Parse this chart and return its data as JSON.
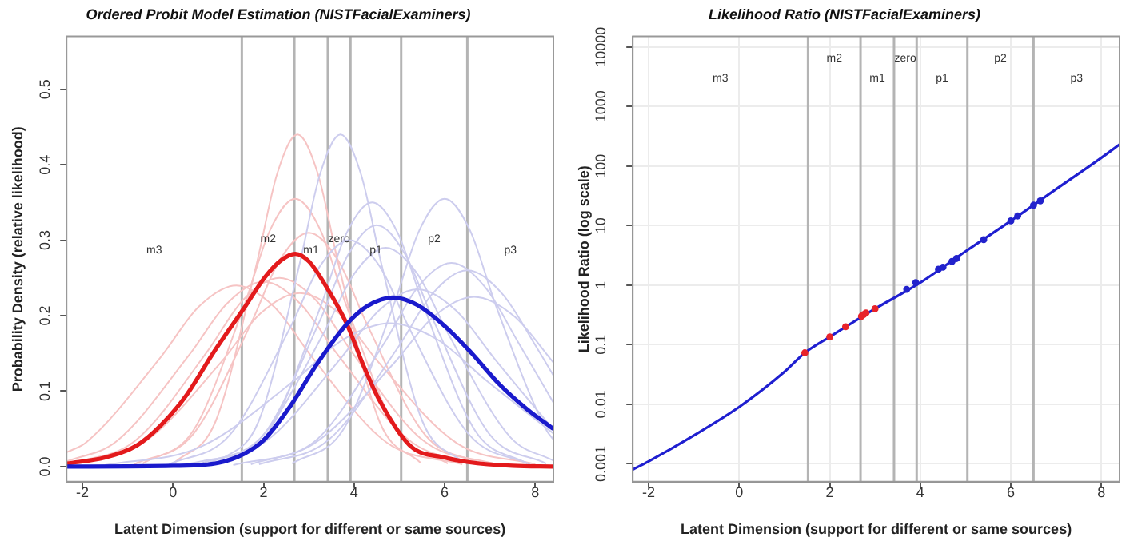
{
  "chart_data": [
    {
      "type": "line",
      "title": "Ordered Probit Model Estimation (NISTFacialExaminers)",
      "xlabel": "Latent Dimension (support for different or same sources)",
      "ylabel": "Probability Density (relative likelihood)",
      "xlim": [
        -2.35,
        8.4
      ],
      "ylim": [
        -0.02,
        0.57
      ],
      "xticks": [
        -2,
        0,
        2,
        4,
        6,
        8
      ],
      "yticks": [
        {
          "value": 0,
          "label": "0.0"
        },
        0.1,
        0.2,
        0.3,
        0.4,
        0.5
      ],
      "legend": false,
      "grid": false,
      "series": [
        {
          "color": "#f6c4c4",
          "x": [
            -2.35,
            -1.92,
            -0.26,
            0.57,
            1.4,
            2.23,
            3.06,
            4.72,
            6.39
          ],
          "values": [
            0.019,
            0.032,
            0.146,
            0.212,
            0.24,
            0.212,
            0.146,
            0.032,
            0.003
          ]
        },
        {
          "color": "#f6c4c4",
          "x": [
            -2.35,
            -1.26,
            0.37,
            1.19,
            2,
            2.81,
            3.63,
            5.26,
            6.88
          ],
          "values": [
            0.007,
            0.033,
            0.149,
            0.216,
            0.245,
            0.216,
            0.149,
            0.033,
            0.003
          ]
        },
        {
          "color": "#f6c4c4",
          "x": [
            -2.35,
            -0.84,
            0.75,
            1.55,
            2.35,
            3.15,
            3.95,
            5.54,
            7.14
          ],
          "values": [
            0.003,
            0.034,
            0.152,
            0.221,
            0.25,
            0.221,
            0.152,
            0.034,
            0.003
          ]
        },
        {
          "color": "#f6c4c4",
          "x": [
            -0.67,
            0.45,
            1.58,
            2.14,
            2.7,
            3.26,
            3.82,
            4.95,
            6.07
          ],
          "values": [
            0.004,
            0.048,
            0.215,
            0.313,
            0.355,
            0.313,
            0.215,
            0.048,
            0.004
          ]
        },
        {
          "color": "#f6c4c4",
          "x": [
            0.03,
            0.94,
            1.84,
            2.3,
            2.75,
            3.2,
            3.66,
            4.56,
            5.47
          ],
          "values": [
            0.005,
            0.06,
            0.267,
            0.388,
            0.44,
            0.388,
            0.267,
            0.06,
            0.005
          ]
        },
        {
          "color": "#f6c4c4",
          "x": [
            -2.35,
            -0.67,
            1.07,
            1.93,
            2.8,
            3.67,
            4.53,
            6.27,
            8
          ],
          "values": [
            0.003,
            0.031,
            0.139,
            0.203,
            0.23,
            0.203,
            0.139,
            0.031,
            0.003
          ]
        },
        {
          "color": "#f6c4c4",
          "x": [
            -0.86,
            0.43,
            1.71,
            2.36,
            3,
            3.64,
            4.29,
            5.57,
            6.86
          ],
          "values": [
            0.003,
            0.042,
            0.188,
            0.274,
            0.31,
            0.274,
            0.188,
            0.042,
            0.003
          ]
        },
        {
          "color": "#cdcdee",
          "x": [
            0.98,
            1.89,
            2.79,
            3.25,
            3.7,
            4.15,
            4.61,
            5.51,
            6.42
          ],
          "values": [
            0.005,
            0.06,
            0.267,
            0.388,
            0.44,
            0.388,
            0.267,
            0.06,
            0.005
          ]
        },
        {
          "color": "#cdcdee",
          "x": [
            -0.09,
            1.24,
            2.57,
            3.24,
            3.9,
            4.57,
            5.23,
            6.56,
            7.89
          ],
          "values": [
            0.003,
            0.041,
            0.182,
            0.265,
            0.3,
            0.265,
            0.182,
            0.041,
            0.003
          ]
        },
        {
          "color": "#cdcdee",
          "x": [
            0.98,
            2.12,
            3.26,
            3.83,
            4.4,
            4.97,
            5.54,
            6.68,
            7.82
          ],
          "values": [
            0.004,
            0.047,
            0.212,
            0.309,
            0.35,
            0.309,
            0.212,
            0.047,
            0.004
          ]
        },
        {
          "color": "#cdcdee",
          "x": [
            0.76,
            2.01,
            3.25,
            3.88,
            4.5,
            5.12,
            5.75,
            6.99,
            8.24
          ],
          "values": [
            0.004,
            0.043,
            0.194,
            0.282,
            0.32,
            0.282,
            0.194,
            0.043,
            0.004
          ]
        },
        {
          "color": "#cdcdee",
          "x": [
            0.57,
            1.95,
            3.32,
            4.01,
            4.7,
            5.39,
            6.08,
            7.45,
            8.4
          ],
          "values": [
            0.003,
            0.039,
            0.176,
            0.256,
            0.29,
            0.256,
            0.176,
            0.039,
            0.008
          ]
        },
        {
          "color": "#cdcdee",
          "x": [
            -1.5,
            0.6,
            2.7,
            3.75,
            4.8,
            5.85,
            6.9,
            8.4
          ],
          "values": [
            0.002,
            0.026,
            0.115,
            0.168,
            0.19,
            0.168,
            0.115,
            0.044
          ]
        },
        {
          "color": "#cdcdee",
          "x": [
            0.31,
            2.01,
            3.7,
            4.55,
            5.4,
            6.25,
            7.1,
            8.4
          ],
          "values": [
            0.003,
            0.032,
            0.143,
            0.207,
            0.235,
            0.207,
            0.143,
            0.049
          ]
        },
        {
          "color": "#cdcdee",
          "x": [
            2.63,
            3.75,
            4.88,
            5.44,
            6,
            6.56,
            7.12,
            8.25,
            8.4
          ],
          "values": [
            0.004,
            0.048,
            0.215,
            0.313,
            0.355,
            0.313,
            0.215,
            0.048,
            0.036
          ]
        },
        {
          "color": "#cdcdee",
          "x": [
            1.72,
            3.2,
            4.67,
            5.41,
            6.15,
            6.89,
            7.63,
            8.4
          ],
          "values": [
            0.003,
            0.037,
            0.164,
            0.238,
            0.27,
            0.238,
            0.164,
            0.085
          ]
        },
        {
          "color": "#cdcdee",
          "x": [
            1.9,
            3.43,
            4.97,
            5.73,
            6.5,
            7.27,
            8.03,
            8.4
          ],
          "values": [
            0.003,
            0.035,
            0.158,
            0.229,
            0.26,
            0.229,
            0.158,
            0.121
          ]
        },
        {
          "color": "#cdcdee",
          "x": [
            1.33,
            3.1,
            4.88,
            5.76,
            6.65,
            7.54,
            8.4
          ],
          "values": [
            0.002,
            0.03,
            0.137,
            0.199,
            0.225,
            0.199,
            0.138
          ]
        },
        {
          "color": "#e31a1c",
          "x": [
            -2.35,
            -1.5,
            -0.8,
            -0.28,
            0.3,
            0.87,
            1.57,
            2.03,
            2.4,
            2.7,
            3,
            3.4,
            3.84,
            4.2,
            4.56,
            5.25,
            6,
            6.52,
            7.5,
            8.4
          ],
          "values": [
            0.004,
            0.012,
            0.028,
            0.054,
            0.095,
            0.149,
            0.21,
            0.251,
            0.274,
            0.282,
            0.272,
            0.237,
            0.189,
            0.135,
            0.088,
            0.027,
            0.012,
            0.006,
            0.001,
            0
          ]
        },
        {
          "color": "#1a1acc",
          "x": [
            -2.35,
            0,
            1,
            1.57,
            2,
            2.6,
            3.18,
            3.84,
            4.3,
            4.85,
            5.4,
            6.06,
            6.6,
            7.21,
            7.8,
            8.4
          ],
          "values": [
            0,
            0.001,
            0.005,
            0.017,
            0.035,
            0.081,
            0.136,
            0.189,
            0.213,
            0.224,
            0.214,
            0.183,
            0.15,
            0.109,
            0.077,
            0.05
          ]
        }
      ],
      "ref_lines": [
        {
          "axis": "x",
          "value": 1.52,
          "color": "#b4b4b4"
        },
        {
          "axis": "x",
          "value": 2.68,
          "color": "#b4b4b4"
        },
        {
          "axis": "x",
          "value": 3.42,
          "color": "#b4b4b4"
        },
        {
          "axis": "x",
          "value": 3.92,
          "color": "#b4b4b4"
        },
        {
          "axis": "x",
          "value": 5.04,
          "color": "#b4b4b4"
        },
        {
          "axis": "x",
          "value": 6.5,
          "color": "#b4b4b4"
        }
      ],
      "annotations": [
        "m3",
        "m2",
        "m1",
        "zero",
        "p1",
        "p2",
        "p3"
      ]
    },
    {
      "type": "line",
      "title": "Likelihood Ratio (NISTFacialExaminers)",
      "xlabel": "Latent Dimension (support for different or same sources)",
      "ylabel": "Likelihood Ratio (log scale)",
      "log": "y",
      "xlim": [
        -2.35,
        8.4
      ],
      "ylim": [
        0.0005,
        15000
      ],
      "xticks": [
        -2,
        0,
        2,
        4,
        6,
        8
      ],
      "yticks": [
        0.001,
        0.01,
        0.1,
        1,
        10,
        100,
        1000,
        10000
      ],
      "legend": false,
      "grid": true,
      "series": [
        {
          "type": "line",
          "color": "#1f1fd0",
          "x": [
            -2.35,
            -2,
            -1,
            0,
            1,
            1.45,
            2,
            3,
            4,
            5,
            6,
            7,
            8,
            8.4
          ],
          "values": [
            0.0008,
            0.0011,
            0.003,
            0.009,
            0.035,
            0.073,
            0.135,
            0.4,
            1.1,
            3.7,
            12,
            41,
            138,
            230
          ]
        },
        {
          "type": "scatter",
          "marker": "circle",
          "color": "#e8232a",
          "x": [
            1.45,
            2,
            2.35,
            2.7,
            2.75,
            2.8,
            3
          ],
          "values": [
            0.073,
            0.135,
            0.2,
            0.3,
            0.32,
            0.34,
            0.4
          ]
        },
        {
          "type": "scatter",
          "marker": "circle",
          "color": "#2222cc",
          "x": [
            3.7,
            3.9,
            4.4,
            4.5,
            4.7,
            4.8,
            5.4,
            6,
            6.15,
            6.5,
            6.65
          ],
          "values": [
            0.85,
            1.1,
            1.85,
            2,
            2.5,
            2.8,
            5.8,
            12,
            14.5,
            22,
            26
          ]
        }
      ],
      "ref_lines": [
        {
          "axis": "x",
          "value": 1.52,
          "color": "#b4b4b4"
        },
        {
          "axis": "x",
          "value": 2.68,
          "color": "#b4b4b4"
        },
        {
          "axis": "x",
          "value": 3.42,
          "color": "#b4b4b4"
        },
        {
          "axis": "x",
          "value": 3.92,
          "color": "#b4b4b4"
        },
        {
          "axis": "x",
          "value": 5.04,
          "color": "#b4b4b4"
        },
        {
          "axis": "x",
          "value": 6.5,
          "color": "#b4b4b4"
        }
      ],
      "annotations": [
        "m3",
        "m2",
        "m1",
        "zero",
        "p1",
        "p2",
        "p3"
      ]
    }
  ]
}
